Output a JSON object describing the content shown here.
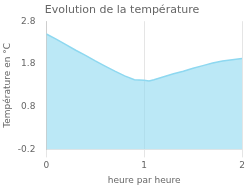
{
  "chart_data": {
    "type": "area",
    "title": "Evolution de la température",
    "xlabel": "heure par heure",
    "ylabel": "Température en °C",
    "x": [
      0,
      0.1,
      0.2,
      0.3,
      0.4,
      0.5,
      0.6,
      0.7,
      0.8,
      0.9,
      1.0,
      1.05,
      1.1,
      1.2,
      1.3,
      1.4,
      1.5,
      1.6,
      1.7,
      1.8,
      1.9,
      2.0
    ],
    "values": [
      2.5,
      2.38,
      2.25,
      2.12,
      2.0,
      1.87,
      1.75,
      1.63,
      1.52,
      1.43,
      1.42,
      1.4,
      1.43,
      1.5,
      1.57,
      1.63,
      1.7,
      1.76,
      1.82,
      1.87,
      1.9,
      1.93
    ],
    "color": "#8ed8f0",
    "xlim": [
      0,
      2
    ],
    "xticks": [
      0,
      1,
      2
    ],
    "ylim": [
      -0.2,
      2.8
    ],
    "yticks": [
      -0.2,
      0.8,
      1.8,
      2.8
    ],
    "grid": "x"
  }
}
